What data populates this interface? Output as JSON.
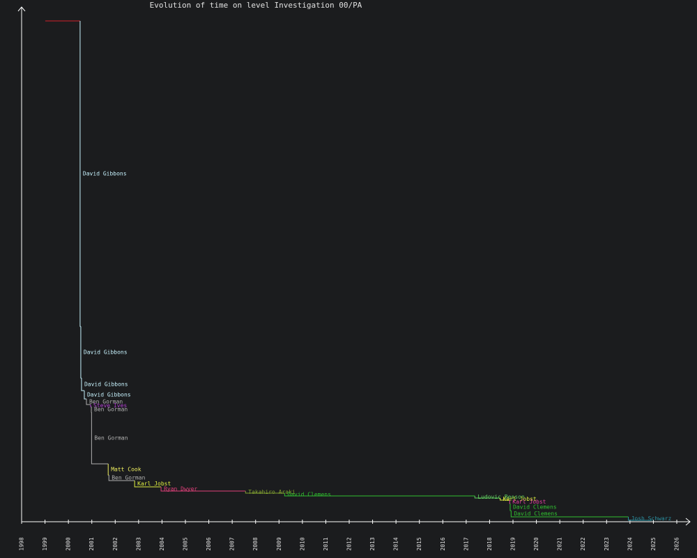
{
  "chart_data": {
    "type": "step",
    "title": "Evolution of time on level Investigation 00/PA",
    "xlim": [
      1998,
      2026
    ],
    "ylim": [
      0,
      738
    ],
    "xticks": [
      1998,
      1999,
      2000,
      2001,
      2002,
      2003,
      2004,
      2005,
      2006,
      2007,
      2008,
      2009,
      2010,
      2011,
      2012,
      2013,
      2014,
      2015,
      2016,
      2017,
      2018,
      2019,
      2020,
      2021,
      2022,
      2023,
      2024,
      2025,
      2026
    ],
    "end_x": 2024.94,
    "records": [
      {
        "x": 1999.01,
        "value": 718,
        "color": "#d0202a"
      },
      {
        "x": 2000.5,
        "value": 280,
        "name": "David Gibbons",
        "color": "#c8f4ff"
      },
      {
        "x": 2000.53,
        "value": 206,
        "name": "David Gibbons",
        "color": "#c8f4ff"
      },
      {
        "x": 2000.56,
        "value": 188,
        "name": "David Gibbons",
        "color": "#c8f4ff"
      },
      {
        "x": 2000.68,
        "value": 176,
        "name": "David Gibbons",
        "color": "#c8f4ff"
      },
      {
        "x": 2000.77,
        "value": 168,
        "name": "Ben Gorman",
        "color": "#b0b0b0"
      },
      {
        "x": 2000.95,
        "value": 165,
        "name": "Steve Ives",
        "color": "#b040d0"
      },
      {
        "x": 2000.98,
        "value": 157,
        "name": "Ben Gorman",
        "color": "#b0b0b0"
      },
      {
        "x": 2000.99,
        "value": 83,
        "name": "Ben Gorman",
        "color": "#b0b0b0"
      },
      {
        "x": 2001.7,
        "value": 67,
        "name": "Matt Cook",
        "color": "#f0f060"
      },
      {
        "x": 2001.73,
        "value": 59,
        "name": "Ben Gorman",
        "color": "#b0b0b0"
      },
      {
        "x": 2002.83,
        "value": 50,
        "name": "Karl Jobst",
        "color": "#e0f040"
      },
      {
        "x": 2003.96,
        "value": 44,
        "name": "Ryan Dwyer",
        "color": "#e0407a"
      },
      {
        "x": 2007.57,
        "value": 41,
        "name": "Takahiro Araki",
        "color": "#80a030"
      },
      {
        "x": 2009.24,
        "value": 37,
        "name": "David Clemens",
        "color": "#30c030"
      },
      {
        "x": 2017.37,
        "value": 34,
        "name": "Ludovic Besson",
        "color": "#60d060"
      },
      {
        "x": 2018.45,
        "value": 31,
        "name": "Karl Jobst",
        "color": "#e0f040"
      },
      {
        "x": 2018.86,
        "value": 26,
        "name": "Karl Jobst",
        "color": "#e040a0"
      },
      {
        "x": 2018.88,
        "value": 16,
        "name": "David Clemens",
        "color": "#30c030"
      },
      {
        "x": 2018.92,
        "value": 7,
        "name": "David Clemens",
        "color": "#30c030"
      },
      {
        "x": 2023.93,
        "value": 2,
        "name": "Josh Schwarz",
        "color": "#2a8fa0"
      }
    ]
  }
}
